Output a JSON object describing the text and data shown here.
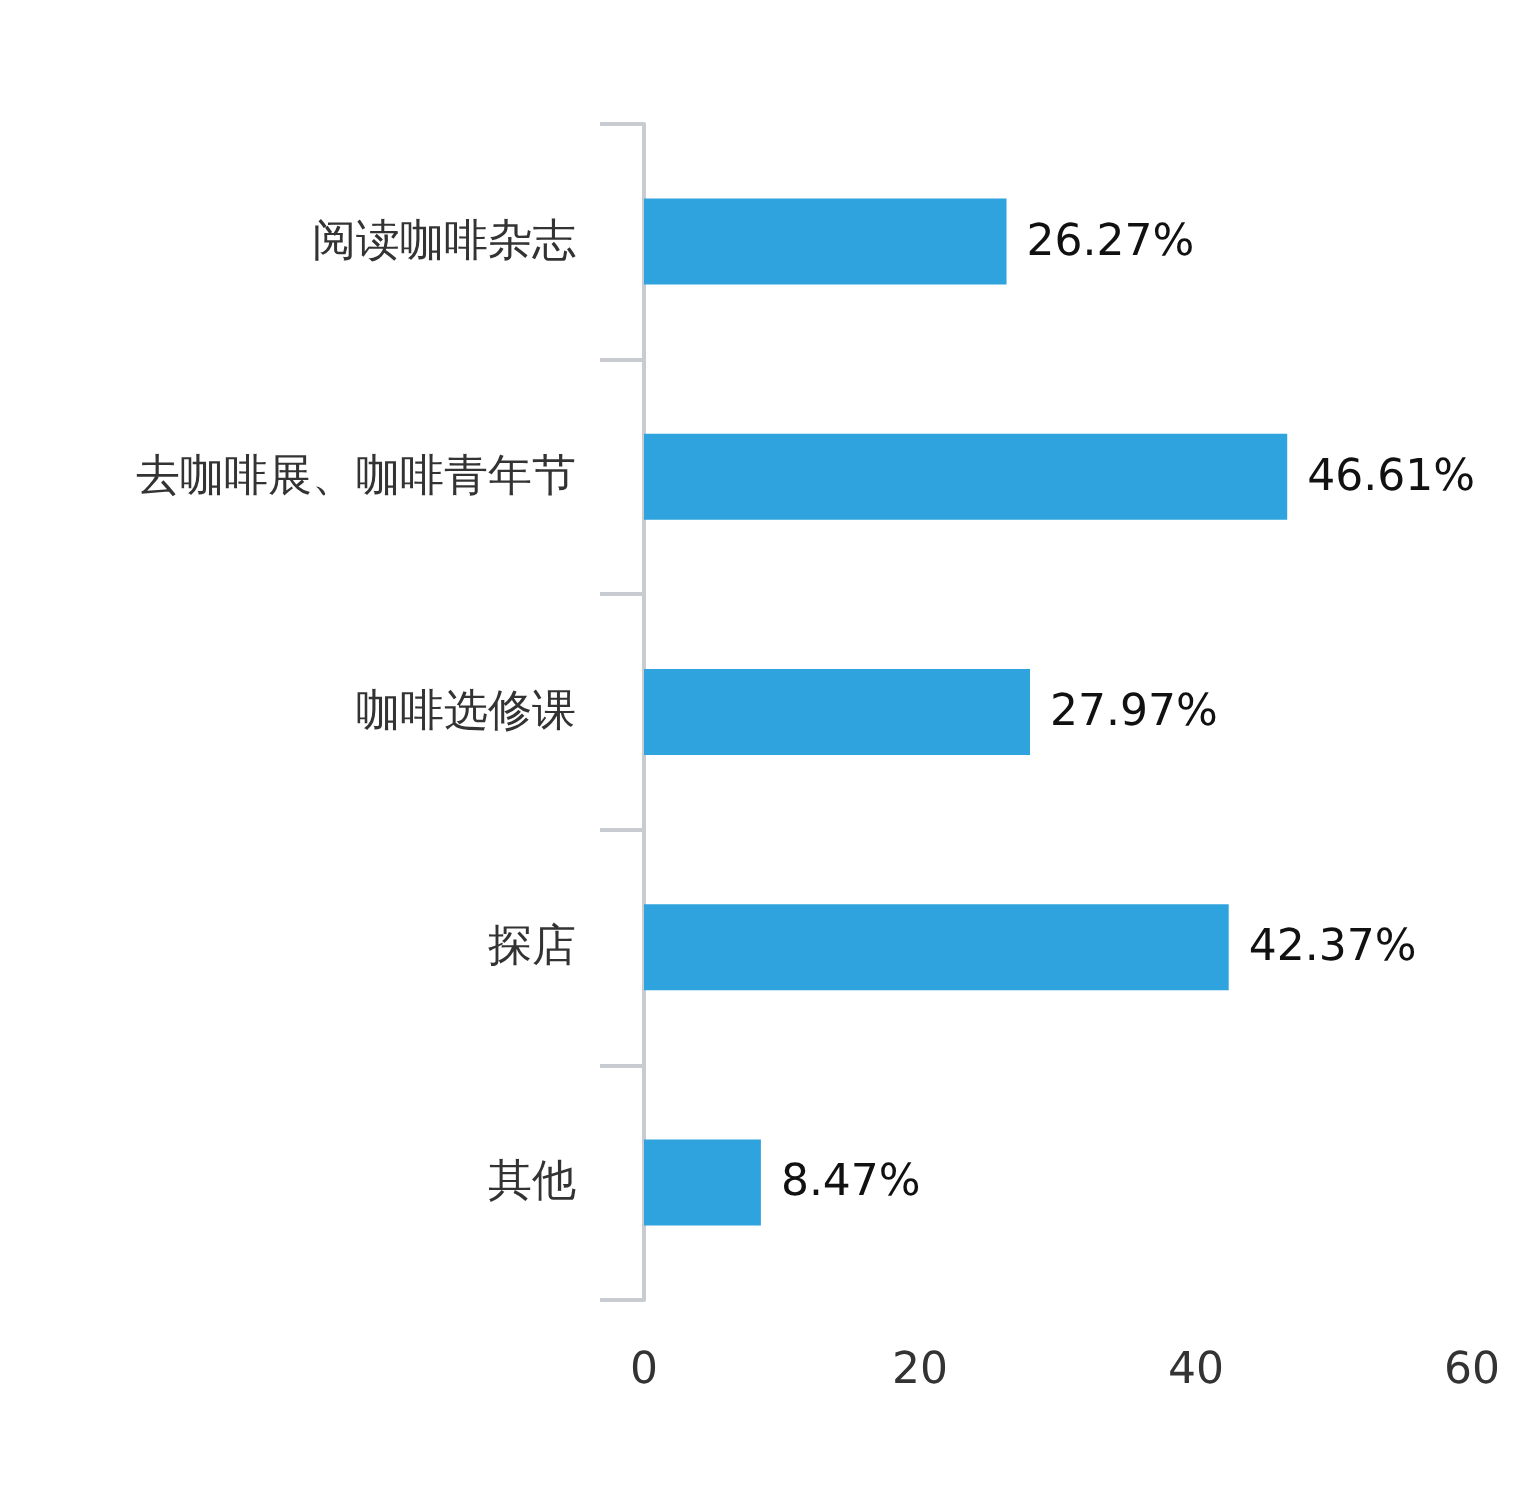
{
  "chart_data": {
    "type": "bar",
    "orientation": "horizontal",
    "categories": [
      "阅读咖啡杂志",
      "去咖啡展、咖啡青年节",
      "咖啡选修课",
      "探店",
      "其他"
    ],
    "values": [
      26.27,
      46.61,
      27.97,
      42.37,
      8.47
    ],
    "value_labels": [
      "26.27%",
      "46.61%",
      "27.97%",
      "42.37%",
      "8.47%"
    ],
    "color": "#2fa3dd",
    "xlim": [
      0,
      60
    ],
    "xticks": [
      0,
      20,
      40,
      60
    ],
    "grid": false
  }
}
